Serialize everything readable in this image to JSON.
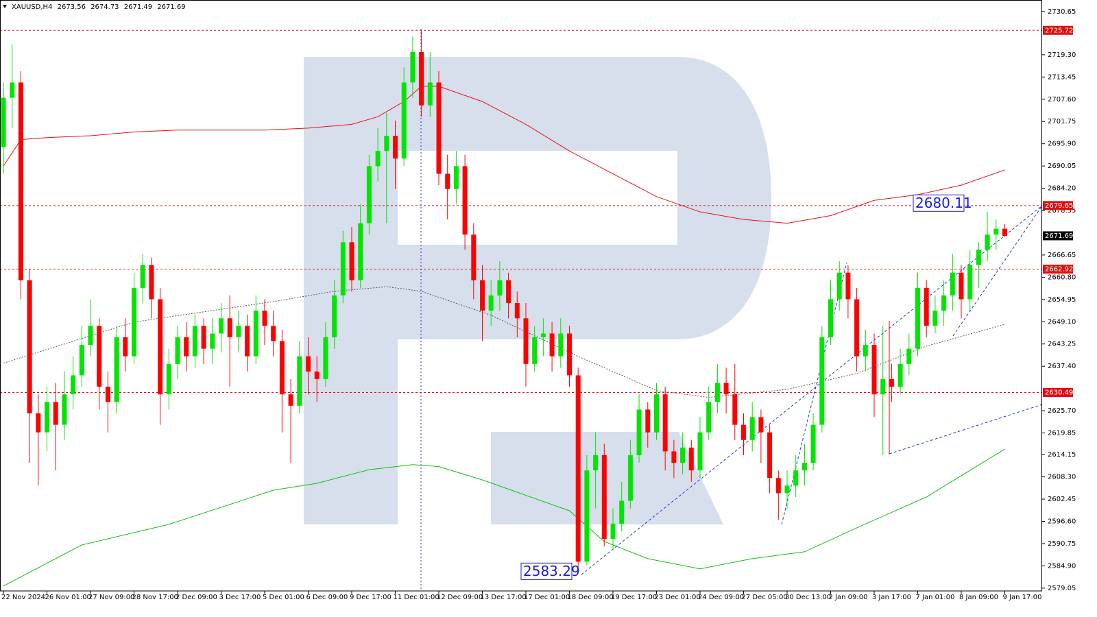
{
  "chart_data": {
    "type": "candlestick",
    "symbol": "XAUUSD,H4",
    "categories": [
      "22 Nov 2024",
      null,
      null,
      null,
      null,
      "26 Nov 01:00",
      null,
      null,
      null,
      null,
      "27 Nov 09:00",
      null,
      null,
      null,
      null,
      "28 Nov 17:00",
      null,
      null,
      null,
      null,
      "2 Dec 09:00",
      null,
      null,
      null,
      null,
      "3 Dec 17:00",
      null,
      null,
      null,
      null,
      "5 Dec 01:00",
      null,
      null,
      null,
      null,
      "6 Dec 09:00",
      null,
      null,
      null,
      null,
      "9 Dec 17:00",
      null,
      null,
      null,
      null,
      "11 Dec 01:00",
      null,
      null,
      null,
      null,
      "12 Dec 09:00",
      null,
      null,
      null,
      null,
      "13 Dec 17:00",
      null,
      null,
      null,
      null,
      "17 Dec 01:00",
      null,
      null,
      null,
      null,
      "18 Dec 09:00",
      null,
      null,
      null,
      null,
      "19 Dec 17:00",
      null,
      null,
      null,
      null,
      "23 Dec 01:00",
      null,
      null,
      null,
      null,
      "24 Dec 09:00",
      null,
      null,
      null,
      null,
      "27 Dec 05:00",
      null,
      null,
      null,
      null,
      "30 Dec 13:00",
      null,
      null,
      null,
      null,
      "2 Jan 09:00",
      null,
      null,
      null,
      null,
      "3 Jan 17:00",
      null,
      null,
      null,
      null,
      "7 Jan 01:00",
      null,
      null,
      null,
      null,
      "8 Jan 09:00",
      null,
      null,
      null,
      null,
      "9 Jan 17:00"
    ],
    "open": [
      2695,
      2708,
      2712,
      2660,
      2625,
      2620,
      2628,
      2622,
      2630,
      2635,
      2643,
      2648,
      2632,
      2628,
      2645,
      2640,
      2658,
      2664,
      2655,
      2630,
      2638,
      2645,
      2640,
      2648,
      2642,
      2646,
      2650,
      2645,
      2648,
      2640,
      2652,
      2648,
      2644,
      2630,
      2627,
      2640,
      2636,
      2634,
      2645,
      2656,
      2670,
      2660,
      2675,
      2690,
      2694,
      2698,
      2692,
      2712,
      2720,
      2706,
      2712,
      2688,
      2684,
      2690,
      2672,
      2660,
      2652,
      2656,
      2660,
      2654,
      2650,
      2638,
      2645,
      2646,
      2640,
      2646,
      2635,
      2586,
      2610,
      2614,
      2592,
      2596,
      2602,
      2614,
      2626,
      2620,
      2630,
      2615,
      2612,
      2616,
      2610,
      2620,
      2628,
      2633,
      2630,
      2622,
      2618,
      2624,
      2620,
      2608,
      2604,
      2606,
      2610,
      2612,
      2622,
      2645,
      2655,
      2662,
      2655,
      2640,
      2643,
      2630,
      2634,
      2632,
      2638,
      2642,
      2658,
      2648,
      2652,
      2656,
      2662,
      2655,
      2664,
      2668,
      2672,
      2673.56
    ],
    "high": [
      2712,
      2722,
      2715,
      2663,
      2630,
      2632,
      2633,
      2636,
      2640,
      2648,
      2655,
      2650,
      2636,
      2648,
      2650,
      2662,
      2667,
      2666,
      2658,
      2642,
      2648,
      2649,
      2651,
      2650,
      2650,
      2654,
      2656,
      2652,
      2651,
      2656,
      2655,
      2652,
      2647,
      2634,
      2644,
      2645,
      2640,
      2649,
      2660,
      2673,
      2674,
      2680,
      2693,
      2700,
      2704,
      2702,
      2716,
      2724,
      2725.72,
      2720,
      2715,
      2693,
      2694,
      2693,
      2675,
      2664,
      2660,
      2665,
      2662,
      2657,
      2654,
      2648,
      2650,
      2649,
      2650,
      2648,
      2637,
      2614,
      2620,
      2617,
      2600,
      2607,
      2618,
      2630,
      2628,
      2633,
      2632,
      2618,
      2620,
      2618,
      2624,
      2632,
      2638,
      2637,
      2638,
      2625,
      2628,
      2626,
      2622,
      2610,
      2610,
      2614,
      2617,
      2625,
      2648,
      2660,
      2665,
      2664,
      2658,
      2647,
      2646,
      2648,
      2638,
      2642,
      2646,
      2662,
      2660,
      2656,
      2660,
      2667,
      2664,
      2668,
      2670,
      2678,
      2676,
      2674.73
    ],
    "low": [
      2688,
      2700,
      2655,
      2612,
      2606,
      2615,
      2610,
      2618,
      2626,
      2632,
      2640,
      2626,
      2620,
      2625,
      2636,
      2638,
      2654,
      2650,
      2622,
      2626,
      2634,
      2636,
      2637,
      2638,
      2638,
      2641,
      2632,
      2641,
      2636,
      2638,
      2643,
      2640,
      2620,
      2612,
      2625,
      2630,
      2628,
      2632,
      2642,
      2654,
      2657,
      2658,
      2672,
      2686,
      2675,
      2684,
      2690,
      2708,
      2703,
      2703,
      2685,
      2676,
      2680,
      2668,
      2655,
      2644,
      2648,
      2652,
      2650,
      2645,
      2632,
      2636,
      2640,
      2636,
      2637,
      2632,
      2583.29,
      2585,
      2600,
      2590,
      2589,
      2594,
      2600,
      2612,
      2616,
      2618,
      2610,
      2608,
      2609,
      2607,
      2608,
      2618,
      2625,
      2625,
      2618,
      2614,
      2615,
      2612,
      2604,
      2597,
      2600,
      2603,
      2606,
      2610,
      2620,
      2643,
      2652,
      2650,
      2636,
      2636,
      2624,
      2614,
      2628,
      2630,
      2635,
      2640,
      2645,
      2646,
      2648,
      2652,
      2650,
      2652,
      2658,
      2665,
      2668,
      2671.49
    ],
    "close": [
      2708,
      2712,
      2660,
      2625,
      2620,
      2628,
      2622,
      2630,
      2635,
      2643,
      2648,
      2632,
      2628,
      2645,
      2640,
      2658,
      2664,
      2655,
      2630,
      2638,
      2645,
      2640,
      2648,
      2642,
      2646,
      2650,
      2645,
      2648,
      2640,
      2652,
      2648,
      2644,
      2630,
      2627,
      2640,
      2636,
      2634,
      2645,
      2656,
      2670,
      2660,
      2675,
      2690,
      2694,
      2698,
      2692,
      2712,
      2720,
      2706,
      2712,
      2688,
      2684,
      2690,
      2672,
      2660,
      2652,
      2656,
      2660,
      2654,
      2650,
      2638,
      2645,
      2646,
      2640,
      2646,
      2635,
      2586,
      2610,
      2614,
      2592,
      2596,
      2602,
      2614,
      2626,
      2620,
      2630,
      2615,
      2612,
      2616,
      2610,
      2620,
      2628,
      2633,
      2630,
      2622,
      2618,
      2624,
      2620,
      2608,
      2604,
      2606,
      2610,
      2612,
      2622,
      2645,
      2655,
      2662,
      2655,
      2640,
      2643,
      2630,
      2634,
      2632,
      2638,
      2642,
      2658,
      2648,
      2652,
      2656,
      2662,
      2655,
      2664,
      2668,
      2672,
      2673.56,
      2671.69
    ],
    "up_color": "#00e600",
    "down_color": "#ff0000",
    "ylim": [
      2578.3,
      2733.7
    ],
    "yticks": [
      2730.65,
      {
        "value": 2719.3,
        "label": "2719.30"
      },
      2713.45,
      {
        "value": 2707.6,
        "label": "2707.60"
      },
      2701.75,
      {
        "value": 2695.9,
        "label": "2695.90"
      },
      2690.05,
      {
        "value": 2684.2,
        "label": "2684.20"
      },
      2678.35,
      2666.65,
      {
        "value": 2660.8,
        "label": "2660.80"
      },
      2654.95,
      {
        "value": 2649.1,
        "label": "2649.10"
      },
      2643.25,
      {
        "value": 2637.4,
        "label": "2637.40"
      },
      {
        "value": 2625.7,
        "label": "2625.70"
      },
      2619.85,
      2614.15,
      {
        "value": 2608.3,
        "label": "2608.30"
      },
      2602.45,
      {
        "value": 2596.6,
        "label": "2596.60"
      },
      2590.75,
      {
        "value": 2584.9,
        "label": "2584.90"
      },
      2579.05
    ],
    "levels": [
      {
        "value": 2725.72,
        "color": "#e01010"
      },
      {
        "value": 2679.65,
        "color": "#e01010"
      },
      {
        "value": 2662.92,
        "color": "#e01010"
      },
      {
        "value": 2630.49,
        "color": "#e01010"
      }
    ],
    "indicators": [
      {
        "color": "#e81010",
        "style": "solid",
        "index": [
          0,
          2,
          5,
          10,
          15,
          20,
          25,
          30,
          35,
          40,
          43,
          46,
          48,
          50,
          55,
          60,
          65,
          70,
          75,
          80,
          85,
          90,
          95,
          100,
          105,
          110,
          115
        ],
        "values": [
          2690,
          2697,
          2697.5,
          2698,
          2699,
          2699.5,
          2699.5,
          2699.5,
          2700,
          2701,
          2703,
          2707,
          2711,
          2711,
          2707,
          2701,
          2694,
          2688,
          2682,
          2678,
          2676,
          2675,
          2677,
          2681,
          2682.5,
          2685,
          2689
        ]
      },
      {
        "color": "#10c010",
        "style": "solid",
        "index": [
          0,
          9,
          19,
          31,
          36,
          42,
          47,
          50,
          55,
          65,
          69,
          74,
          80,
          86,
          92,
          98,
          106,
          115
        ],
        "values": [
          2579.6,
          2590.4,
          2595.8,
          2604.8,
          2606.6,
          2610.2,
          2611.5,
          2611,
          2607.5,
          2599.4,
          2591.3,
          2586.8,
          2584.1,
          2586.8,
          2588.6,
          2594.9,
          2603,
          2615.6
        ]
      },
      {
        "color": "#555555",
        "style": "dotted",
        "index": [
          0,
          15,
          31,
          38,
          44,
          48,
          56,
          66,
          75,
          81,
          90,
          98,
          106,
          115
        ],
        "values": [
          2638.2,
          2649,
          2654.4,
          2657.1,
          2658.3,
          2657.1,
          2650.8,
          2640,
          2631,
          2629.2,
          2631.3,
          2635.5,
          2642.7,
          2648.4
        ]
      }
    ],
    "annotations": [
      {
        "value": 2680.11
      },
      {
        "value": 2583.29
      }
    ]
  }
}
